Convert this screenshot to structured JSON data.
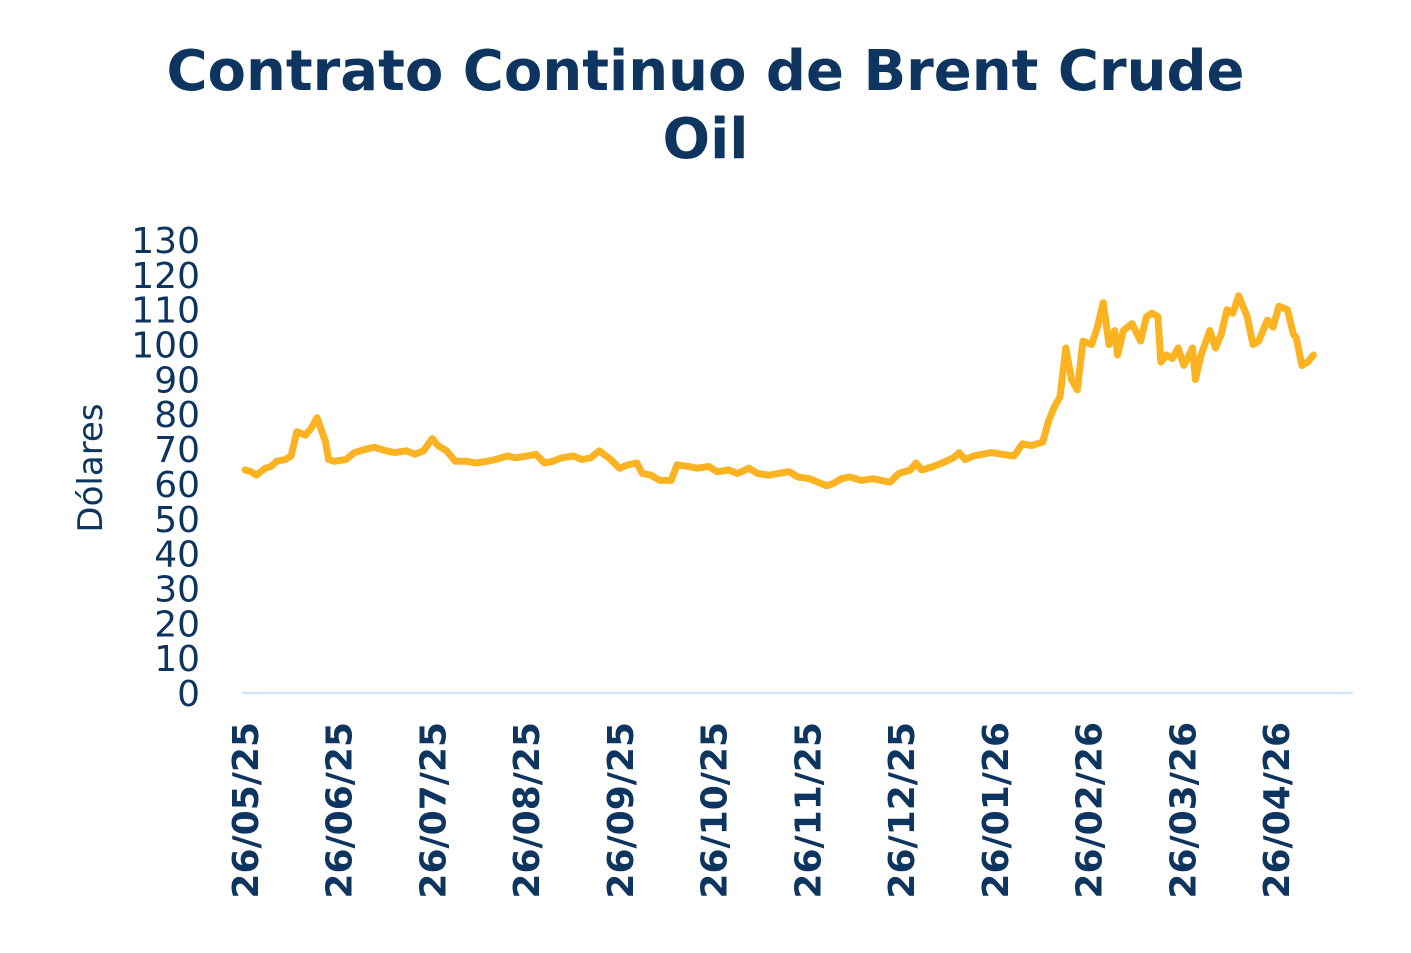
{
  "chart_data": {
    "type": "line",
    "title_lines": [
      "Contrato Continuo de Brent Crude",
      "Oil"
    ],
    "xlabel": "",
    "ylabel": "Dólares",
    "ylim": [
      0,
      130
    ],
    "yticks": [
      0,
      10,
      20,
      30,
      40,
      50,
      60,
      70,
      80,
      90,
      100,
      110,
      120,
      130
    ],
    "xticks": [
      "26/05/25",
      "26/06/25",
      "26/07/25",
      "26/08/25",
      "26/09/25",
      "26/10/25",
      "26/11/25",
      "26/12/25",
      "26/01/26",
      "26/02/26",
      "26/03/26",
      "26/04/26"
    ],
    "x_range": [
      "2025-05-26",
      "2026-05-19"
    ],
    "grid": false,
    "line_color": "#fbb322",
    "axis_color": "#cfe6f7",
    "text_color": "#0d3560",
    "series": [
      {
        "points": [
          [
            "2025-05-26",
            64
          ],
          [
            "2025-05-28",
            63.5
          ],
          [
            "2025-05-30",
            62.5
          ],
          [
            "2025-06-02",
            64.5
          ],
          [
            "2025-06-04",
            65
          ],
          [
            "2025-06-06",
            66.5
          ],
          [
            "2025-06-09",
            67
          ],
          [
            "2025-06-11",
            68
          ],
          [
            "2025-06-13",
            75
          ],
          [
            "2025-06-16",
            74
          ],
          [
            "2025-06-18",
            76
          ],
          [
            "2025-06-20",
            79
          ],
          [
            "2025-06-23",
            72
          ],
          [
            "2025-06-24",
            67
          ],
          [
            "2025-06-26",
            66.5
          ],
          [
            "2025-06-30",
            67
          ],
          [
            "2025-07-03",
            69
          ],
          [
            "2025-07-07",
            70
          ],
          [
            "2025-07-10",
            70.5
          ],
          [
            "2025-07-14",
            69.5
          ],
          [
            "2025-07-17",
            69
          ],
          [
            "2025-07-21",
            69.5
          ],
          [
            "2025-07-24",
            68.5
          ],
          [
            "2025-07-27",
            69.5
          ],
          [
            "2025-07-30",
            73
          ],
          [
            "2025-08-01",
            71
          ],
          [
            "2025-08-04",
            69.5
          ],
          [
            "2025-08-07",
            66.5
          ],
          [
            "2025-08-11",
            66.5
          ],
          [
            "2025-08-14",
            66
          ],
          [
            "2025-08-18",
            66.5
          ],
          [
            "2025-08-21",
            67
          ],
          [
            "2025-08-25",
            68
          ],
          [
            "2025-08-28",
            67.5
          ],
          [
            "2025-09-01",
            68
          ],
          [
            "2025-09-04",
            68.5
          ],
          [
            "2025-09-07",
            66
          ],
          [
            "2025-09-10",
            66.5
          ],
          [
            "2025-09-13",
            67.5
          ],
          [
            "2025-09-17",
            68
          ],
          [
            "2025-09-20",
            67
          ],
          [
            "2025-09-23",
            67.5
          ],
          [
            "2025-09-26",
            69.5
          ],
          [
            "2025-09-30",
            67
          ],
          [
            "2025-10-03",
            64.5
          ],
          [
            "2025-10-06",
            65.5
          ],
          [
            "2025-10-09",
            66
          ],
          [
            "2025-10-11",
            63
          ],
          [
            "2025-10-14",
            62.5
          ],
          [
            "2025-10-17",
            61
          ],
          [
            "2025-10-21",
            61
          ],
          [
            "2025-10-23",
            65.5
          ],
          [
            "2025-10-27",
            65
          ],
          [
            "2025-10-30",
            64.5
          ],
          [
            "2025-11-03",
            65
          ],
          [
            "2025-11-06",
            63.5
          ],
          [
            "2025-11-10",
            64
          ],
          [
            "2025-11-13",
            63
          ],
          [
            "2025-11-17",
            64.5
          ],
          [
            "2025-11-20",
            63
          ],
          [
            "2025-11-24",
            62.5
          ],
          [
            "2025-11-27",
            63
          ],
          [
            "2025-12-01",
            63.5
          ],
          [
            "2025-12-04",
            62
          ],
          [
            "2025-12-08",
            61.5
          ],
          [
            "2025-12-11",
            60.5
          ],
          [
            "2025-12-14",
            59.5
          ],
          [
            "2025-12-16",
            60
          ],
          [
            "2025-12-19",
            61.5
          ],
          [
            "2025-12-22",
            62
          ],
          [
            "2025-12-26",
            61
          ],
          [
            "2025-12-30",
            61.5
          ],
          [
            "2026-01-02",
            61
          ],
          [
            "2026-01-05",
            60.5
          ],
          [
            "2026-01-08",
            63
          ],
          [
            "2026-01-12",
            64
          ],
          [
            "2026-01-14",
            66
          ],
          [
            "2026-01-16",
            64
          ],
          [
            "2026-01-20",
            65
          ],
          [
            "2026-01-23",
            66
          ],
          [
            "2026-01-27",
            67.5
          ],
          [
            "2026-01-29",
            69
          ],
          [
            "2026-01-31",
            67
          ],
          [
            "2026-02-03",
            68
          ],
          [
            "2026-02-06",
            68.5
          ],
          [
            "2026-02-09",
            69
          ],
          [
            "2026-02-13",
            68.5
          ],
          [
            "2026-02-17",
            68
          ],
          [
            "2026-02-20",
            71.5
          ],
          [
            "2026-02-23",
            71
          ],
          [
            "2026-02-25",
            71.5
          ],
          [
            "2026-02-27",
            72
          ],
          [
            "2026-03-01",
            78
          ],
          [
            "2026-03-03",
            82
          ],
          [
            "2026-03-05",
            85
          ],
          [
            "2026-03-07",
            99
          ],
          [
            "2026-03-09",
            90
          ],
          [
            "2026-03-11",
            87
          ],
          [
            "2026-03-13",
            101
          ],
          [
            "2026-03-16",
            100
          ],
          [
            "2026-03-18",
            105
          ],
          [
            "2026-03-20",
            112
          ],
          [
            "2026-03-22",
            100
          ],
          [
            "2026-03-24",
            104
          ],
          [
            "2026-03-25",
            97
          ],
          [
            "2026-03-27",
            104
          ],
          [
            "2026-03-30",
            106
          ],
          [
            "2026-04-02",
            101
          ],
          [
            "2026-04-04",
            108
          ],
          [
            "2026-04-06",
            109
          ],
          [
            "2026-04-08",
            108
          ],
          [
            "2026-04-09",
            95
          ],
          [
            "2026-04-11",
            97
          ],
          [
            "2026-04-13",
            96
          ],
          [
            "2026-04-15",
            99
          ],
          [
            "2026-04-17",
            94
          ],
          [
            "2026-04-20",
            99
          ],
          [
            "2026-04-21",
            90
          ],
          [
            "2026-04-23",
            97
          ],
          [
            "2026-04-26",
            104
          ],
          [
            "2026-04-28",
            99
          ],
          [
            "2026-04-30",
            103
          ],
          [
            "2026-05-02",
            110
          ],
          [
            "2026-05-04",
            109
          ],
          [
            "2026-05-06",
            114
          ],
          [
            "2026-05-09",
            108
          ],
          [
            "2026-05-11",
            100
          ],
          [
            "2026-05-13",
            101
          ],
          [
            "2026-05-16",
            107
          ],
          [
            "2026-05-18",
            105
          ],
          [
            "2026-05-20",
            111
          ],
          [
            "2026-05-23",
            110
          ],
          [
            "2026-05-25",
            103
          ],
          [
            "2026-05-26",
            102
          ],
          [
            "2026-05-28",
            94
          ],
          [
            "2026-05-30",
            95
          ],
          [
            "2026-06-01",
            97
          ]
        ]
      }
    ]
  }
}
